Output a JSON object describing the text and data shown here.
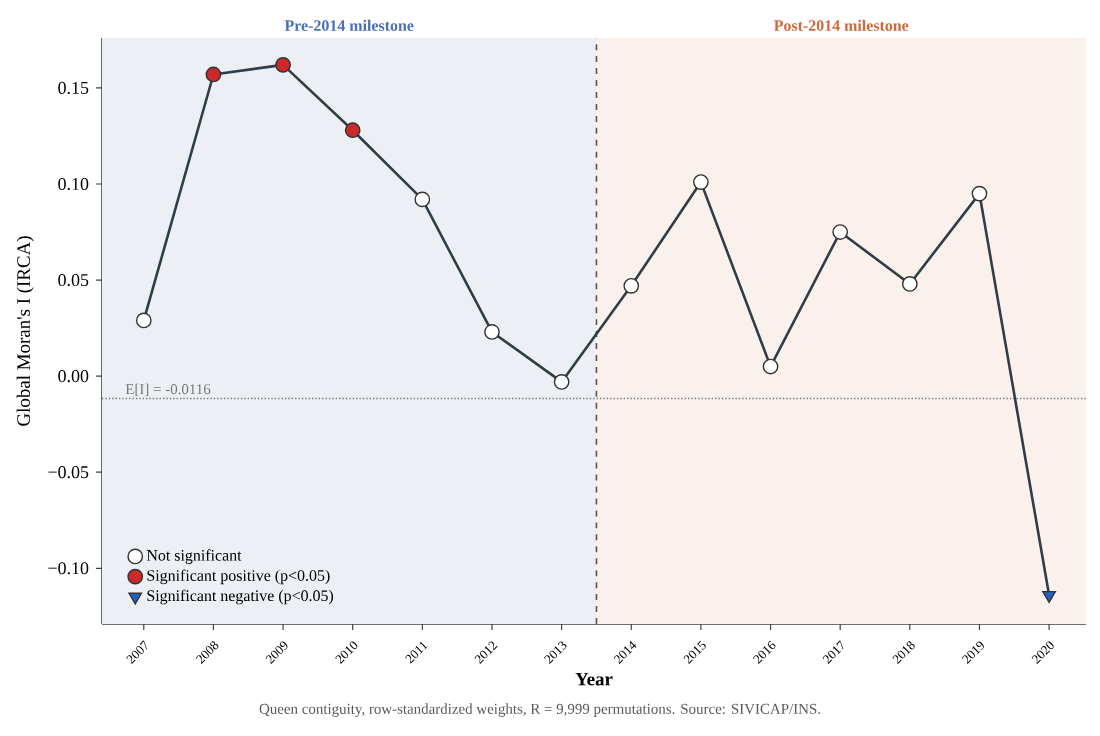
{
  "chart_data": {
    "type": "line",
    "xlabel": "Year",
    "ylabel": "Global Moran's I (IRCA)",
    "xlim": [
      2006.4,
      2020.53
    ],
    "ylim": [
      -0.129,
      0.176
    ],
    "xticks": [
      2007,
      2008,
      2009,
      2010,
      2011,
      2012,
      2013,
      2014,
      2015,
      2016,
      2017,
      2018,
      2019,
      2020
    ],
    "yticks": [
      {
        "value": -0.1,
        "label": "−0.10"
      },
      {
        "value": -0.05,
        "label": "−0.05"
      },
      {
        "value": 0,
        "label": "0.00"
      },
      {
        "value": 0.05,
        "label": "0.05"
      },
      {
        "value": 0.1,
        "label": "0.10"
      },
      {
        "value": 0.15,
        "label": "0.15"
      }
    ],
    "series": [
      {
        "color": "#2e3d47",
        "line_style": "solid",
        "marker": "none",
        "x": [
          2007,
          2008,
          2009,
          2010,
          2011,
          2012,
          2013,
          2014,
          2015,
          2016,
          2017,
          2018,
          2019,
          2020
        ],
        "values": [
          0.029,
          0.157,
          0.162,
          0.128,
          0.092,
          0.023,
          -0.003,
          0.047,
          0.101,
          0.005,
          0.075,
          0.048,
          0.095,
          -0.114
        ]
      },
      {
        "type": "scatter",
        "name": "Not significant",
        "color": "#ffffff",
        "marker": "circle",
        "x": [
          2007,
          2011,
          2012,
          2013,
          2014,
          2015,
          2016,
          2017,
          2018,
          2019
        ],
        "values": [
          0.029,
          0.092,
          0.023,
          -0.003,
          0.047,
          0.101,
          0.005,
          0.075,
          0.048,
          0.095
        ]
      },
      {
        "type": "scatter",
        "name": "Significant positive (p<0.05)",
        "color": "#cc2a2a",
        "marker": "circle",
        "x": [
          2008,
          2009,
          2010
        ],
        "values": [
          0.157,
          0.162,
          0.128
        ]
      },
      {
        "type": "scatter",
        "name": "Significant negative (p<0.05)",
        "color": "#1f62c0",
        "marker": "triangle",
        "x": [
          2020
        ],
        "values": [
          -0.114
        ]
      }
    ],
    "bands": [
      {
        "axis": "x",
        "from": 2006.4,
        "to": 2013.5,
        "label": "Pre-2014 milestone",
        "color": "#eceff4"
      },
      {
        "axis": "x",
        "from": 2013.5,
        "to": 2020.53,
        "label": "Post-2014 milestone",
        "color": "#fbf1ec"
      }
    ],
    "ref_lines": [
      {
        "axis": "x",
        "value": 2013.5,
        "line_style": "dashed",
        "color": "#555555"
      },
      {
        "axis": "y",
        "value": -0.0116,
        "label": "E[I] = -0.0116",
        "line_style": "dotted",
        "color": "#777777"
      }
    ],
    "annotations": [
      "Queen contiguity, row-standardized weights, R = 9,999 permutations. Source: SIVICAP/INS."
    ],
    "legend": "bottom left",
    "grid": false
  }
}
